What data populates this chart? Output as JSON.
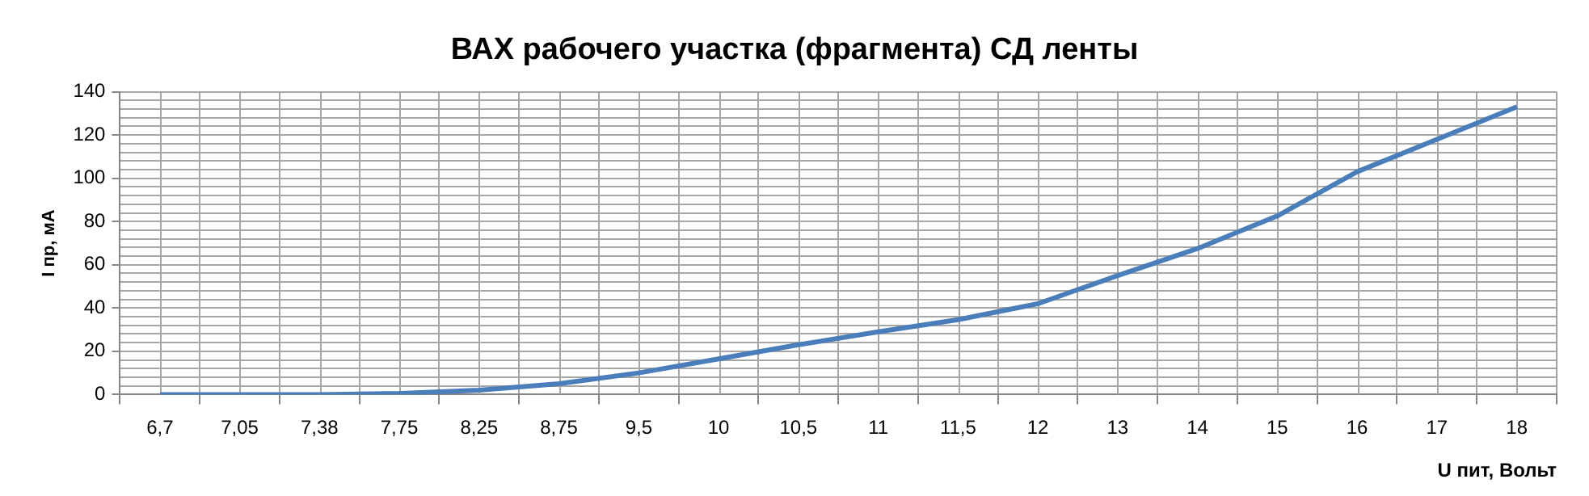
{
  "chart_data": {
    "type": "line",
    "title": "ВАХ рабочего участка (фрагмента) СД ленты",
    "xlabel": "U пит, Вольт",
    "ylabel": "I пр, мА",
    "categories": [
      "6,7",
      "7,05",
      "7,38",
      "7,75",
      "8,25",
      "8,75",
      "9,5",
      "10",
      "10,5",
      "11",
      "11,5",
      "12",
      "13",
      "14",
      "15",
      "16",
      "17",
      "18"
    ],
    "series": [
      {
        "color": "#4a7ebb",
        "values": [
          0,
          0,
          0,
          0.5,
          2,
          5,
          10,
          16.5,
          23,
          29,
          34.6,
          42,
          55,
          67.5,
          82.6,
          103,
          118,
          133
        ]
      }
    ],
    "ylim": [
      0,
      140
    ],
    "yticks": [
      0,
      {
        "value": 4,
        "label": null
      },
      {
        "value": 8,
        "label": null
      },
      {
        "value": 12,
        "label": null
      },
      {
        "value": 16,
        "label": null
      },
      20,
      {
        "value": 24,
        "label": null
      },
      {
        "value": 28,
        "label": null
      },
      {
        "value": 32,
        "label": null
      },
      {
        "value": 36,
        "label": null
      },
      40,
      {
        "value": 44,
        "label": null
      },
      {
        "value": 48,
        "label": null
      },
      {
        "value": 52,
        "label": null
      },
      {
        "value": 56,
        "label": null
      },
      60,
      {
        "value": 64,
        "label": null
      },
      {
        "value": 68,
        "label": null
      },
      {
        "value": 72,
        "label": null
      },
      {
        "value": 76,
        "label": null
      },
      80,
      {
        "value": 84,
        "label": null
      },
      {
        "value": 88,
        "label": null
      },
      {
        "value": 92,
        "label": null
      },
      {
        "value": 96,
        "label": null
      },
      100,
      {
        "value": 104,
        "label": null
      },
      {
        "value": 108,
        "label": null
      },
      {
        "value": 112,
        "label": null
      },
      {
        "value": 116,
        "label": null
      },
      120,
      {
        "value": 124,
        "label": null
      },
      {
        "value": 128,
        "label": null
      },
      {
        "value": 132,
        "label": null
      },
      {
        "value": 136,
        "label": null
      },
      140
    ],
    "grid": true,
    "legend": false,
    "marker": "none",
    "line_style": "solid"
  }
}
